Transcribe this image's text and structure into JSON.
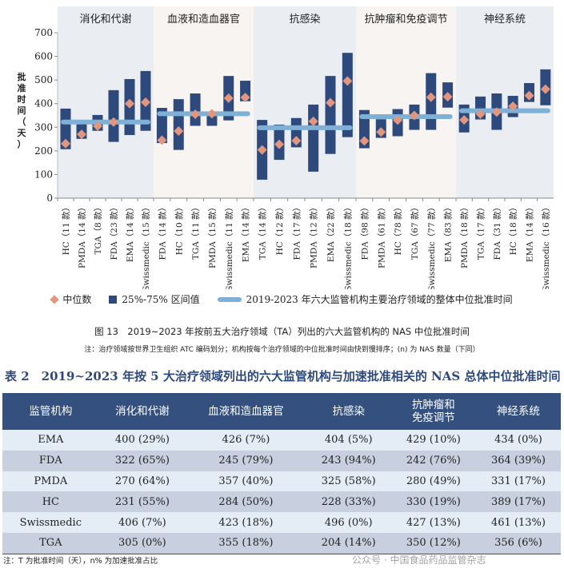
{
  "chart_data": {
    "type": "bar",
    "subtype": "floating range bars with median markers, faceted by therapeutic area",
    "ylabel": "批准时间（天）",
    "ylim": [
      0,
      700
    ],
    "yticks": [
      0,
      100,
      200,
      300,
      400,
      500,
      600,
      700
    ],
    "grid": false,
    "legend_position": "bottom",
    "legend": [
      "中位数",
      "25%-75% 区间值",
      "2019-2023 年六大监管机构主要治疗领域的整体中位批准时间"
    ],
    "colors": {
      "median": "#e0967f",
      "iqr": "#2e4a7d",
      "overall": "#7fb0d6",
      "panel_a": "#eaeef3",
      "panel_b": "#f8f4f2"
    },
    "panels": [
      {
        "title": "消化和代谢",
        "overall": 322,
        "categories": [
          "HC（11 款）",
          "PMDA（14 款）",
          "TGA（8 款）",
          "FDA（23 款）",
          "EMA（14 款）",
          "Swissmedic（15 款）"
        ],
        "median": [
          231,
          270,
          305,
          322,
          400,
          406
        ],
        "q1": [
          207,
          251,
          285,
          238,
          267,
          285
        ],
        "q3": [
          379,
          320,
          352,
          457,
          504,
          538
        ]
      },
      {
        "title": "血液和造血器官",
        "overall": 357,
        "categories": [
          "FDA（14 款）",
          "HC（10 款）",
          "TGA（11 款）",
          "PMDA（15 款）",
          "Swissmedic（11 款）",
          "EMA（14 款）"
        ],
        "median": [
          245,
          284,
          355,
          357,
          423,
          426
        ],
        "q1": [
          233,
          204,
          306,
          306,
          329,
          410
        ],
        "q3": [
          382,
          419,
          443,
          360,
          517,
          497
        ]
      },
      {
        "title": "抗感染",
        "overall": 298,
        "categories": [
          "TGA（14 款）",
          "HC（12 款）",
          "FDA（17 款）",
          "PMDA（12 款）",
          "EMA（22 款）",
          "Swissmedic（18 款）"
        ],
        "median": [
          204,
          228,
          243,
          325,
          404,
          496
        ],
        "q1": [
          78,
          162,
          215,
          112,
          187,
          258
        ],
        "q3": [
          331,
          311,
          339,
          396,
          517,
          615
        ]
      },
      {
        "title": "抗肿瘤和免疫调节",
        "overall": 345,
        "categories": [
          "FDA（98 款）",
          "PMDA（61 款）",
          "HC（78 款）",
          "TGA（67 款）",
          "Swissmedic（77 款）",
          "EMA（83 款）"
        ],
        "median": [
          242,
          280,
          330,
          350,
          427,
          429
        ],
        "q1": [
          211,
          255,
          262,
          289,
          289,
          383
        ],
        "q3": [
          373,
          334,
          377,
          396,
          529,
          490
        ]
      },
      {
        "title": "神经系统",
        "overall": 370,
        "categories": [
          "PMDA（18 款）",
          "TGA（17 款）",
          "FDA（31 款）",
          "HC（18 款）",
          "EMA（14 款）",
          "Swissmedic（16 款）"
        ],
        "median": [
          331,
          356,
          364,
          389,
          434,
          461
        ],
        "q1": [
          278,
          333,
          289,
          343,
          407,
          393
        ],
        "q3": [
          396,
          430,
          443,
          433,
          487,
          545
        ]
      }
    ]
  },
  "caption": "图 13　2019~2023 年按前五大治疗领域（TA）列出的六大监管机构的 NAS 中位批准时间",
  "figure_note": "注：治疗领域按世界卫生组织 ATC 编码划分；机构按每个治疗领域的中位批准时间由快到慢排序；(n) 为 NAS 数量（下同）",
  "table": {
    "title": "表 2　2019~2023 年按 5 大治疗领域列出的六大监管机构与加速批准相关的 NAS 总体中位批准时间",
    "headers": [
      "监管机构",
      "消化和代谢",
      "血液和造血器官",
      "抗感染",
      "抗肿瘤和\n免疫调节",
      "神经系统"
    ],
    "header_lines": {
      "h4a": "抗肿瘤和",
      "h4b": "免疫调节"
    },
    "rows": [
      [
        "EMA",
        "400 (29%)",
        "426 (7%)",
        "404 (5%)",
        "429 (10%)",
        "434 (0%)"
      ],
      [
        "FDA",
        "322 (65%)",
        "245 (79%)",
        "243 (94%)",
        "242 (76%)",
        "364 (39%)"
      ],
      [
        "PMDA",
        "270 (64%)",
        "357 (40%)",
        "325 (58%)",
        "280 (49%)",
        "331 (17%)"
      ],
      [
        "HC",
        "231 (55%)",
        "284 (50%)",
        "228 (33%)",
        "330 (19%)",
        "389 (17%)"
      ],
      [
        "Swissmedic",
        "406 (7%)",
        "423 (18%)",
        "496 (0%)",
        "427 (13%)",
        "461 (13%)"
      ],
      [
        "TGA",
        "305 (0%)",
        "355 (18%)",
        "204 (14%)",
        "350 (12%)",
        "356 (6%)"
      ]
    ],
    "note": "注：T 为批准时间（天），n% 为加速批准占比"
  },
  "watermark": "公众号 · 中国食品药品监管杂志"
}
